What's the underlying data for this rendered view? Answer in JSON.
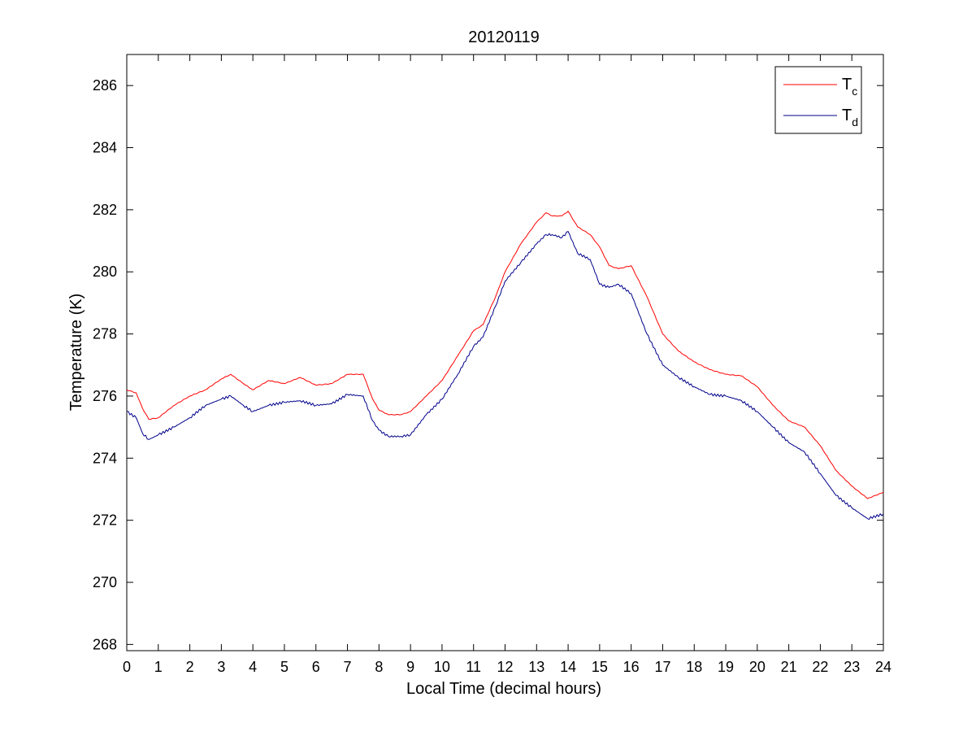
{
  "chart_data": {
    "type": "line",
    "title": "20120119",
    "xlabel": "Local Time (decimal hours)",
    "ylabel": "Temperature (K)",
    "xlim": [
      0,
      24
    ],
    "ylim": [
      267.8,
      287
    ],
    "xticks": [
      0,
      1,
      2,
      3,
      4,
      5,
      6,
      7,
      8,
      9,
      10,
      11,
      12,
      13,
      14,
      15,
      16,
      17,
      18,
      19,
      20,
      21,
      22,
      23,
      24
    ],
    "yticks": [
      268,
      270,
      272,
      274,
      276,
      278,
      280,
      282,
      284,
      286
    ],
    "grid": false,
    "legend_position": "top-right",
    "series": [
      {
        "name": "T_c",
        "legend_main": "T",
        "legend_sub": "c",
        "color": "#ff0000",
        "x": [
          0,
          0.3,
          0.5,
          0.7,
          1,
          1.5,
          2,
          2.5,
          3,
          3.3,
          3.7,
          4,
          4.5,
          5,
          5.5,
          6,
          6.5,
          7,
          7.5,
          7.8,
          8,
          8.3,
          8.7,
          9,
          9.5,
          10,
          10.5,
          11,
          11.3,
          11.7,
          12,
          12.5,
          13,
          13.3,
          13.5,
          13.8,
          14,
          14.3,
          14.7,
          15,
          15.3,
          15.6,
          16,
          16.5,
          17,
          17.5,
          18,
          18.5,
          19,
          19.5,
          20,
          20.5,
          21,
          21.5,
          22,
          22.5,
          23,
          23.5,
          24
        ],
        "y": [
          276.2,
          276.1,
          275.6,
          275.25,
          275.3,
          275.7,
          276.0,
          276.2,
          276.55,
          276.7,
          276.4,
          276.2,
          276.5,
          276.4,
          276.6,
          276.35,
          276.4,
          276.7,
          276.7,
          275.9,
          275.55,
          275.4,
          275.4,
          275.5,
          276.0,
          276.5,
          277.3,
          278.1,
          278.3,
          279.2,
          280.0,
          280.9,
          281.6,
          281.9,
          281.8,
          281.8,
          281.95,
          281.45,
          281.2,
          280.8,
          280.2,
          280.1,
          280.2,
          279.2,
          278.0,
          277.45,
          277.1,
          276.85,
          276.7,
          276.65,
          276.3,
          275.7,
          275.2,
          275.0,
          274.4,
          273.6,
          273.1,
          272.7,
          272.9
        ]
      },
      {
        "name": "T_d",
        "legend_main": "T",
        "legend_sub": "d",
        "color": "#00008b",
        "x": [
          0,
          0.3,
          0.5,
          0.7,
          1,
          1.5,
          2,
          2.5,
          3,
          3.3,
          3.7,
          4,
          4.5,
          5,
          5.5,
          6,
          6.5,
          7,
          7.5,
          7.8,
          8,
          8.3,
          8.7,
          9,
          9.5,
          10,
          10.5,
          11,
          11.3,
          11.7,
          12,
          12.5,
          13,
          13.3,
          13.5,
          13.8,
          14,
          14.3,
          14.7,
          15,
          15.3,
          15.6,
          16,
          16.5,
          17,
          17.5,
          18,
          18.5,
          19,
          19.5,
          20,
          20.5,
          21,
          21.5,
          22,
          22.5,
          23,
          23.5,
          24
        ],
        "y": [
          275.5,
          275.3,
          274.8,
          274.6,
          274.75,
          275.0,
          275.3,
          275.7,
          275.9,
          276.0,
          275.7,
          275.5,
          275.7,
          275.8,
          275.85,
          275.7,
          275.75,
          276.05,
          276.0,
          275.2,
          274.9,
          274.7,
          274.7,
          274.75,
          275.4,
          275.9,
          276.7,
          277.6,
          277.9,
          278.9,
          279.7,
          280.3,
          280.9,
          281.2,
          281.2,
          281.1,
          281.3,
          280.6,
          280.4,
          279.6,
          279.5,
          279.6,
          279.3,
          278.0,
          277.0,
          276.6,
          276.3,
          276.05,
          276.0,
          275.85,
          275.5,
          275.0,
          274.5,
          274.2,
          273.5,
          272.8,
          272.4,
          272.05,
          272.2
        ]
      }
    ]
  }
}
